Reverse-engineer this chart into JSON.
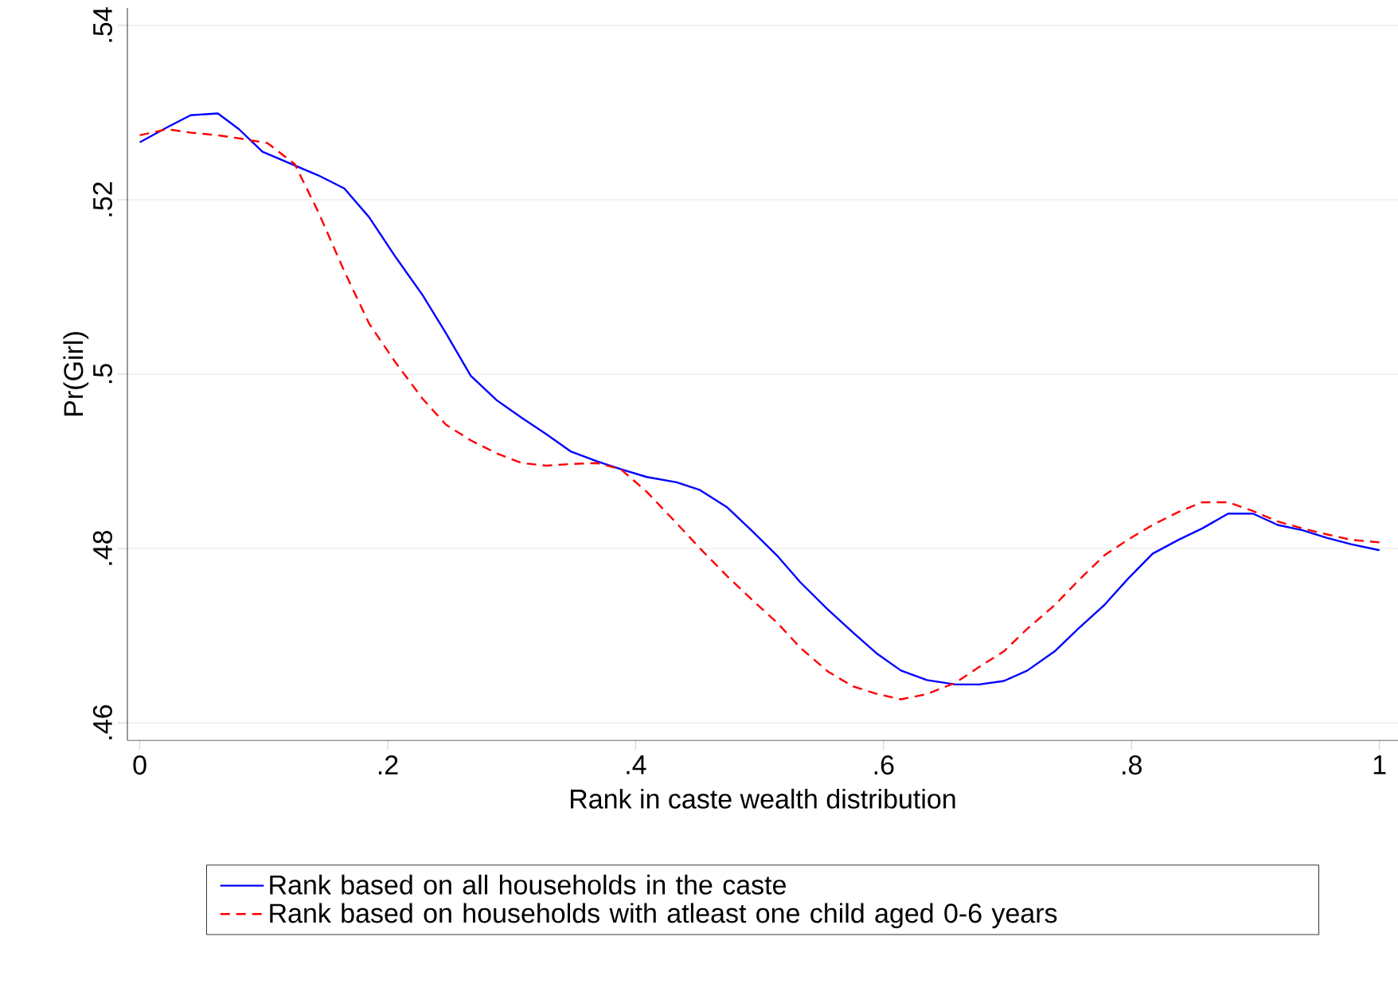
{
  "chart_data": {
    "type": "line",
    "xlabel": "Rank in caste wealth distribution",
    "ylabel": "Pr(Girl)",
    "xlim": [
      -0.01,
      1.015
    ],
    "ylim": [
      0.458,
      0.542
    ],
    "xticks": [
      0,
      {
        "value": 0.2,
        "label": ".2"
      },
      {
        "value": 0.4,
        "label": ".4"
      },
      {
        "value": 0.6,
        "label": ".6"
      },
      {
        "value": 0.8,
        "label": ".8"
      },
      1
    ],
    "yticks": [
      {
        "value": 0.46,
        "label": ".46"
      },
      {
        "value": 0.48,
        "label": ".48"
      },
      {
        "value": 0.5,
        "label": ".5"
      },
      {
        "value": 0.52,
        "label": ".52"
      },
      {
        "value": 0.54,
        "label": ".54"
      }
    ],
    "grid": "y",
    "legend": "bottom",
    "marker": "none",
    "series": [
      {
        "name": "Rank based on all households in the caste",
        "color": "#0000ff",
        "line_style": "solid",
        "x": [
          0,
          0.022,
          0.041,
          0.063,
          0.08,
          0.099,
          0.144,
          0.165,
          0.185,
          0.206,
          0.228,
          0.247,
          0.267,
          0.288,
          0.308,
          0.328,
          0.348,
          0.369,
          0.388,
          0.409,
          0.433,
          0.452,
          0.474,
          0.494,
          0.514,
          0.533,
          0.555,
          0.575,
          0.595,
          0.614,
          0.635,
          0.658,
          0.677,
          0.697,
          0.716,
          0.738,
          0.757,
          0.778,
          0.797,
          0.817,
          0.838,
          0.857,
          0.878,
          0.898,
          0.918,
          0.938,
          0.958,
          0.977,
          1
        ],
        "values": [
          0.5266,
          0.5283,
          0.5297,
          0.5299,
          0.5281,
          0.5255,
          0.5228,
          0.5213,
          0.518,
          0.5135,
          0.5091,
          0.5047,
          0.4998,
          0.497,
          0.495,
          0.4931,
          0.4911,
          0.49,
          0.4891,
          0.4882,
          0.4876,
          0.4867,
          0.4847,
          0.482,
          0.4792,
          0.4761,
          0.473,
          0.4704,
          0.4679,
          0.466,
          0.4649,
          0.4644,
          0.4644,
          0.4648,
          0.466,
          0.4682,
          0.4708,
          0.4735,
          0.4765,
          0.4794,
          0.481,
          0.4823,
          0.484,
          0.484,
          0.4827,
          0.4821,
          0.4812,
          0.4805,
          0.4798
        ]
      },
      {
        "name": "Rank based on households with atleast one child aged 0-6 years",
        "color": "#ff0000",
        "line_style": "dashed",
        "x": [
          0,
          0.022,
          0.041,
          0.063,
          0.082,
          0.103,
          0.125,
          0.144,
          0.165,
          0.185,
          0.206,
          0.228,
          0.247,
          0.267,
          0.288,
          0.308,
          0.328,
          0.348,
          0.369,
          0.388,
          0.409,
          0.433,
          0.452,
          0.474,
          0.494,
          0.514,
          0.533,
          0.555,
          0.575,
          0.595,
          0.614,
          0.635,
          0.658,
          0.677,
          0.697,
          0.716,
          0.738,
          0.757,
          0.778,
          0.797,
          0.817,
          0.838,
          0.857,
          0.878,
          0.898,
          0.918,
          0.938,
          0.958,
          0.977,
          1
        ],
        "values": [
          0.5274,
          0.5281,
          0.5277,
          0.5274,
          0.527,
          0.5265,
          0.5241,
          0.5186,
          0.5118,
          0.5058,
          0.5014,
          0.4972,
          0.4942,
          0.4924,
          0.4909,
          0.4898,
          0.4895,
          0.4897,
          0.4898,
          0.4891,
          0.4865,
          0.4829,
          0.48,
          0.4768,
          0.4741,
          0.4715,
          0.4686,
          0.4659,
          0.4642,
          0.4633,
          0.4627,
          0.4633,
          0.4646,
          0.4664,
          0.4682,
          0.4708,
          0.4735,
          0.4763,
          0.4792,
          0.481,
          0.4827,
          0.4842,
          0.4853,
          0.4853,
          0.4843,
          0.4831,
          0.4823,
          0.4816,
          0.481,
          0.4807
        ]
      }
    ]
  }
}
